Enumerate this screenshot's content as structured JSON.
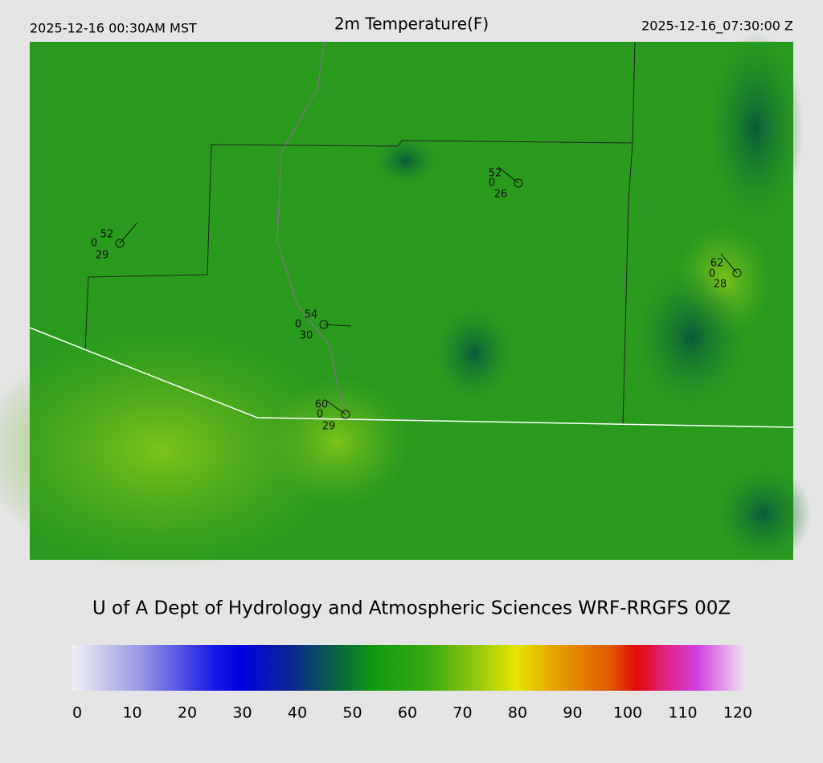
{
  "header": {
    "local_time": "2025-12-16 00:30AM MST",
    "title": "2m Temperature(F)",
    "utc_time": "2025-12-16_07:30:00 Z"
  },
  "stations": [
    {
      "temperature": 52,
      "value": 0,
      "dewpoint": 29
    },
    {
      "temperature": 52,
      "value": 0,
      "dewpoint": 26
    },
    {
      "temperature": 62,
      "value": 0,
      "dewpoint": 28
    },
    {
      "temperature": 54,
      "value": 0,
      "dewpoint": 30
    },
    {
      "temperature": 60,
      "value": 0,
      "dewpoint": 29
    }
  ],
  "credit": "U of A Dept of Hydrology and Atmospheric Sciences WRF-RRGFS 00Z",
  "colorbar": {
    "ticks": [
      0,
      10,
      20,
      30,
      40,
      50,
      60,
      70,
      80,
      90,
      100,
      110,
      120
    ]
  }
}
